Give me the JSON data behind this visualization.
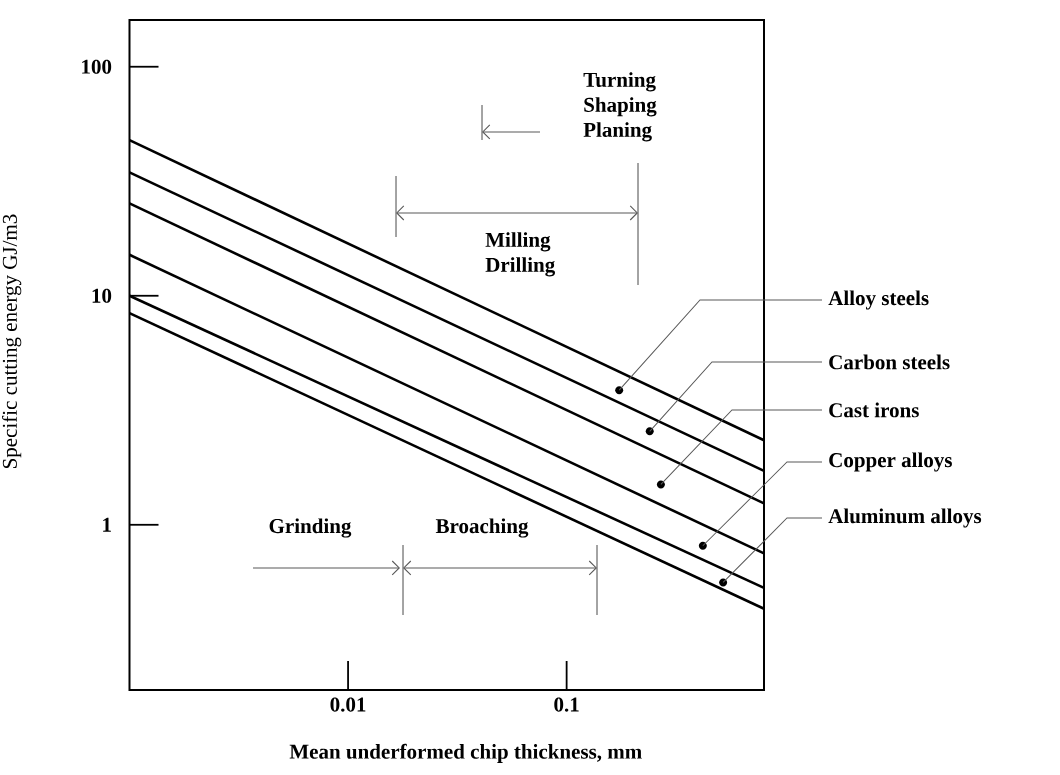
{
  "chart_data": {
    "type": "line",
    "xlabel": "Mean underformed chip thickness, mm",
    "ylabel": "Specific cutting energy GJ/m3",
    "log": "xy",
    "xlim": [
      0.001,
      0.8
    ],
    "ylim": [
      0.19,
      160
    ],
    "xticks": [
      0.01,
      0.1
    ],
    "yticks": [
      1,
      10,
      100
    ],
    "x": [
      0.001,
      0.8
    ],
    "series": [
      {
        "color": "#000000",
        "values": [
          47.8,
          2.34
        ]
      },
      {
        "color": "#000000",
        "values": [
          34.6,
          1.72
        ]
      },
      {
        "color": "#000000",
        "values": [
          25.3,
          1.24
        ]
      },
      {
        "color": "#000000",
        "values": [
          15.1,
          0.75
        ]
      },
      {
        "color": "#000000",
        "values": [
          10.0,
          0.53
        ]
      },
      {
        "color": "#000000",
        "values": [
          8.4,
          0.43
        ]
      }
    ],
    "annotations": [
      "Turning Shaping Planing",
      "Milling Drilling",
      "Grinding",
      "Broaching",
      {
        "text": "Alloy steels",
        "x": 0.174,
        "y": 3.87
      },
      {
        "text": "Carbon steels",
        "x": 0.24,
        "y": 2.56
      },
      {
        "text": "Cast irons",
        "x": 0.27,
        "y": 1.5
      },
      {
        "text": "Copper alloys",
        "x": 0.42,
        "y": 0.81
      },
      {
        "text": "Aluminum alloys",
        "x": 0.52,
        "y": 0.56
      }
    ]
  }
}
